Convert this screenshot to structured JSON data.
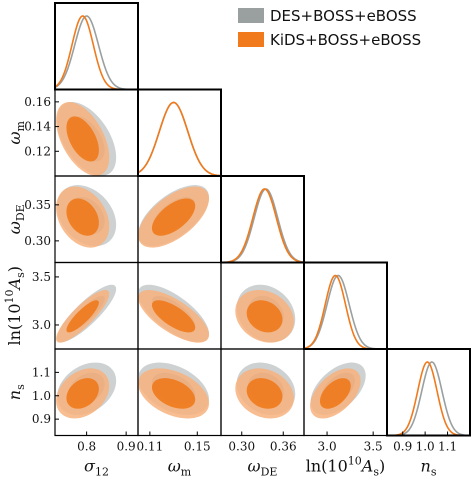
{
  "chart_data": {
    "type": "corner",
    "legend": "upper right",
    "parameters": [
      {
        "label": [
          "σ",
          "12"
        ],
        "label_style": [
          "italic",
          "sub"
        ],
        "lim": [
          0.72,
          0.93
        ],
        "xticks": [
          0.8,
          0.9
        ]
      },
      {
        "label": [
          "ω",
          "m"
        ],
        "label_style": [
          "italic",
          "sub"
        ],
        "lim": [
          0.1,
          0.17
        ],
        "xticks": [
          0.11,
          0.15
        ],
        "yticks": [
          0.12,
          0.14,
          0.16
        ]
      },
      {
        "label": [
          "ω",
          "DE"
        ],
        "label_style": [
          "italic",
          "sub"
        ],
        "lim": [
          0.27,
          0.39
        ],
        "xticks": [
          {
            "value": 0.3,
            "label": "0.30"
          },
          0.36
        ],
        "yticks": [
          {
            "value": 0.3,
            "label": "0.30"
          },
          0.35
        ]
      },
      {
        "label": [
          "ln(10",
          "10",
          "A",
          "s",
          ")"
        ],
        "label_style": [
          "normal",
          "sup",
          "italic",
          "sub",
          "normal"
        ],
        "lim": [
          2.75,
          3.65
        ],
        "xticks": [
          {
            "value": 3,
            "label": "3.0"
          },
          3.5
        ],
        "yticks": [
          {
            "value": 3,
            "label": "3.0"
          },
          3.5
        ]
      },
      {
        "label": [
          "n",
          "s"
        ],
        "label_style": [
          "italic",
          "sub"
        ],
        "lim": [
          0.83,
          1.2
        ],
        "xticks": [
          0.9,
          {
            "value": 1,
            "label": "1.0"
          },
          1.1
        ],
        "yticks": [
          0.9,
          {
            "value": 1,
            "label": "1.0"
          },
          1.1
        ]
      }
    ],
    "series": [
      {
        "name": "DES+BOSS+eBOSS",
        "color": "#9aa0a0",
        "inner_color": "#a3a9a9",
        "outer_color": "#cdd1d1",
        "means": [
          0.8,
          0.13,
          0.335,
          3.12,
          1.03
        ],
        "sds": [
          0.03,
          0.012,
          0.017,
          0.12,
          0.045
        ],
        "correlations": [
          [
            -0.5
          ],
          [
            -0.3,
            0.6
          ],
          [
            0.85,
            -0.7,
            -0.2
          ],
          [
            0.3,
            -0.4,
            -0.2,
            0.5
          ]
        ]
      },
      {
        "name": "KiDS+BOSS+eBOSS",
        "color": "#f07a1c",
        "inner_color": "#f07a1c",
        "outer_color": "#f7b27c",
        "means": [
          0.79,
          0.13,
          0.333,
          3.09,
          1.01
        ],
        "sds": [
          0.027,
          0.012,
          0.017,
          0.11,
          0.043
        ],
        "correlations": [
          [
            -0.5
          ],
          [
            -0.3,
            0.6
          ],
          [
            0.85,
            -0.7,
            -0.2
          ],
          [
            0.3,
            -0.4,
            -0.2,
            0.5
          ]
        ]
      }
    ]
  }
}
